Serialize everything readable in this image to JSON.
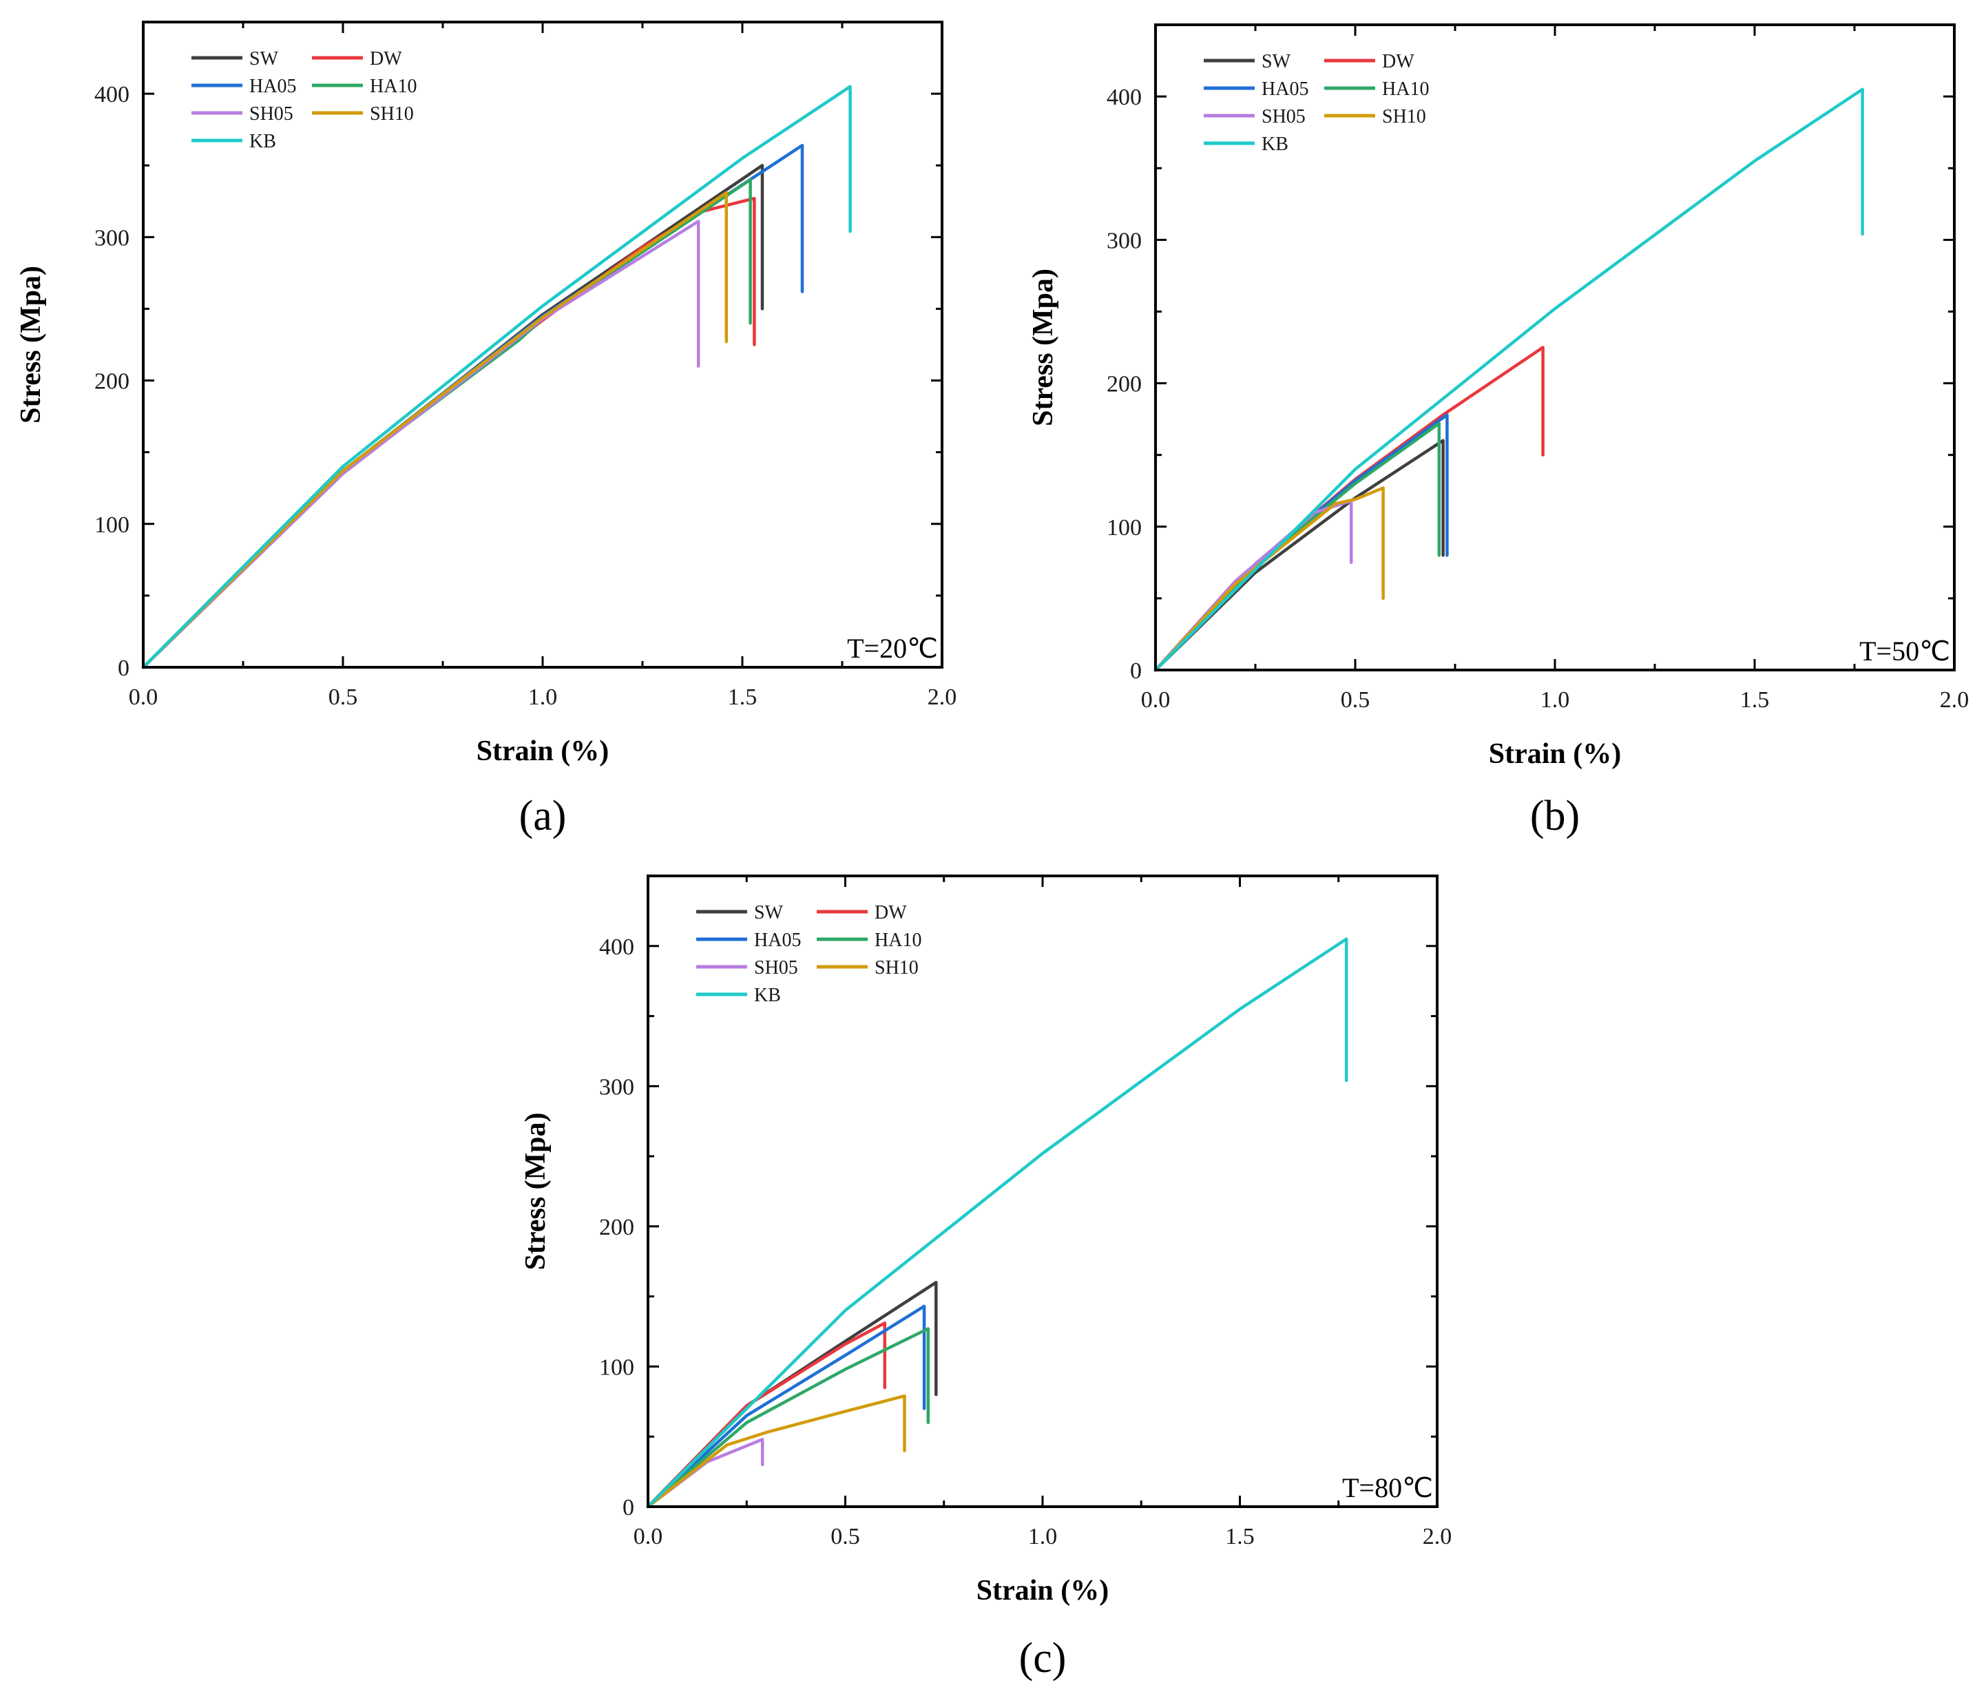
{
  "colors": {
    "SW": "#3f3f3f",
    "DW": "#e8383d",
    "HA05": "#1f6fd6",
    "HA10": "#2ea866",
    "SH05": "#b77ee3",
    "SH10": "#d29b0b",
    "KB": "#1fc9c9"
  },
  "chart_data": [
    {
      "type": "line",
      "panel_label": "(a)",
      "temperature_label": "T=20℃",
      "xlabel": "Strain (%)",
      "ylabel": "Stress (Mpa)",
      "xlim": [
        0,
        2.0
      ],
      "ylim": [
        0,
        450
      ],
      "xticks": [
        "0.0",
        "0.5",
        "1.0",
        "1.5",
        "2.0"
      ],
      "yticks": [
        "0",
        "100",
        "200",
        "300",
        "400"
      ],
      "legend": [
        "SW",
        "DW",
        "HA05",
        "HA10",
        "SH05",
        "SH10",
        "KB"
      ],
      "series": [
        {
          "name": "SW",
          "x": [
            0,
            0.5,
            1.0,
            1.55
          ],
          "y": [
            0,
            136,
            246,
            350
          ],
          "fracture_to": 250
        },
        {
          "name": "DW",
          "x": [
            0,
            0.5,
            1.0,
            1.25,
            1.4,
            1.53
          ],
          "y": [
            0,
            136,
            242,
            293,
            318,
            327
          ],
          "fracture_to": 225
        },
        {
          "name": "HA05",
          "x": [
            0,
            0.5,
            1.0,
            1.65
          ],
          "y": [
            0,
            137,
            245,
            364
          ],
          "fracture_to": 262
        },
        {
          "name": "HA10",
          "x": [
            0,
            0.5,
            0.94,
            1.0,
            1.52
          ],
          "y": [
            0,
            136,
            228,
            243,
            340
          ],
          "fracture_to": 240
        },
        {
          "name": "SH05",
          "x": [
            0,
            0.5,
            1.0,
            1.39
          ],
          "y": [
            0,
            135,
            243,
            311
          ],
          "fracture_to": 210
        },
        {
          "name": "SH10",
          "x": [
            0,
            0.5,
            1.0,
            1.46
          ],
          "y": [
            0,
            137,
            244,
            331
          ],
          "fracture_to": 227
        },
        {
          "name": "KB",
          "x": [
            0,
            0.5,
            1.0,
            1.5,
            1.77
          ],
          "y": [
            0,
            140,
            252,
            355,
            405
          ],
          "fracture_to": 304
        }
      ]
    },
    {
      "type": "line",
      "panel_label": "(b)",
      "temperature_label": "T=50℃",
      "xlabel": "Strain (%)",
      "ylabel": "Stress (Mpa)",
      "xlim": [
        0,
        2.0
      ],
      "ylim": [
        0,
        450
      ],
      "xticks": [
        "0.0",
        "0.5",
        "1.0",
        "1.5",
        "2.0"
      ],
      "yticks": [
        "0",
        "100",
        "200",
        "300",
        "400"
      ],
      "legend": [
        "SW",
        "DW",
        "HA05",
        "HA10",
        "SH05",
        "SH10",
        "KB"
      ],
      "series": [
        {
          "name": "SW",
          "x": [
            0,
            0.25,
            0.5,
            0.72
          ],
          "y": [
            0,
            68,
            120,
            160
          ],
          "fracture_to": 80
        },
        {
          "name": "DW",
          "x": [
            0,
            0.25,
            0.5,
            0.72,
            0.97
          ],
          "y": [
            0,
            74,
            133,
            178,
            225
          ],
          "fracture_to": 150
        },
        {
          "name": "HA05",
          "x": [
            0,
            0.25,
            0.5,
            0.73
          ],
          "y": [
            0,
            74,
            132,
            178
          ],
          "fracture_to": 80
        },
        {
          "name": "HA10",
          "x": [
            0,
            0.25,
            0.5,
            0.71
          ],
          "y": [
            0,
            73,
            130,
            172
          ],
          "fracture_to": 80
        },
        {
          "name": "SH05",
          "x": [
            0,
            0.2,
            0.4,
            0.49
          ],
          "y": [
            0,
            62,
            110,
            118
          ],
          "fracture_to": 75
        },
        {
          "name": "SH10",
          "x": [
            0,
            0.2,
            0.45,
            0.5,
            0.57
          ],
          "y": [
            0,
            60,
            116,
            119,
            127
          ],
          "fracture_to": 50
        },
        {
          "name": "KB",
          "x": [
            0,
            0.5,
            1.0,
            1.5,
            1.77
          ],
          "y": [
            0,
            140,
            252,
            355,
            405
          ],
          "fracture_to": 304
        }
      ]
    },
    {
      "type": "line",
      "panel_label": "(c)",
      "temperature_label": "T=80℃",
      "xlabel": "Strain (%)",
      "ylabel": "Stress (Mpa)",
      "xlim": [
        0,
        2.0
      ],
      "ylim": [
        0,
        450
      ],
      "xticks": [
        "0.0",
        "0.5",
        "1.0",
        "1.5",
        "2.0"
      ],
      "yticks": [
        "0",
        "100",
        "200",
        "300",
        "400"
      ],
      "legend": [
        "SW",
        "DW",
        "HA05",
        "HA10",
        "SH05",
        "SH10",
        "KB"
      ],
      "series": [
        {
          "name": "SW",
          "x": [
            0,
            0.25,
            0.5,
            0.73
          ],
          "y": [
            0,
            72,
            118,
            160
          ],
          "fracture_to": 80
        },
        {
          "name": "DW",
          "x": [
            0,
            0.25,
            0.5,
            0.6
          ],
          "y": [
            0,
            72,
            116,
            131
          ],
          "fracture_to": 85
        },
        {
          "name": "HA05",
          "x": [
            0,
            0.25,
            0.5,
            0.7
          ],
          "y": [
            0,
            65,
            108,
            143
          ],
          "fracture_to": 70
        },
        {
          "name": "HA10",
          "x": [
            0,
            0.25,
            0.5,
            0.71
          ],
          "y": [
            0,
            60,
            98,
            127
          ],
          "fracture_to": 60
        },
        {
          "name": "SH05",
          "x": [
            0,
            0.15,
            0.29
          ],
          "y": [
            0,
            32,
            48
          ],
          "fracture_to": 30
        },
        {
          "name": "SH10",
          "x": [
            0,
            0.2,
            0.3,
            0.5,
            0.65
          ],
          "y": [
            0,
            44,
            53,
            68,
            79
          ],
          "fracture_to": 40
        },
        {
          "name": "KB",
          "x": [
            0,
            0.5,
            1.0,
            1.5,
            1.77
          ],
          "y": [
            0,
            140,
            252,
            355,
            405
          ],
          "fracture_to": 304
        }
      ]
    }
  ]
}
